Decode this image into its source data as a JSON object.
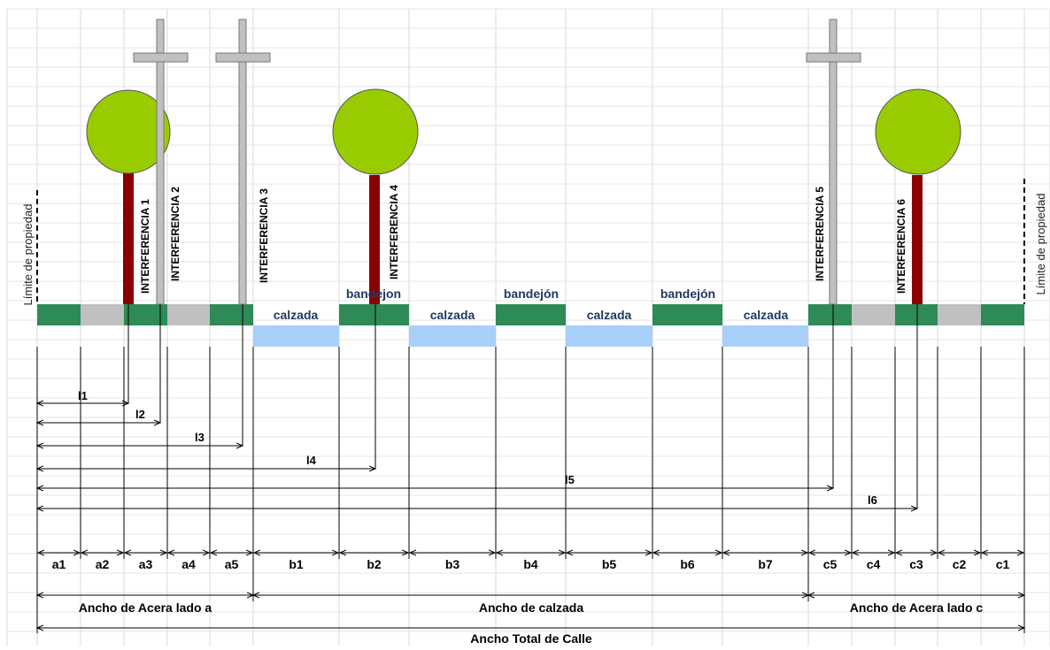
{
  "property_limit": {
    "left_label": "Límite de propiedad",
    "right_label": "Límite de propiedad"
  },
  "interferences": [
    {
      "label": "INTERFERENCIA 1",
      "source": "tree"
    },
    {
      "label": "INTERFERENCIA 2",
      "source": "pole"
    },
    {
      "label": "INTERFERENCIA 3",
      "source": "pole"
    },
    {
      "label": "INTERFERENCIA 4",
      "source": "tree"
    },
    {
      "label": "INTERFERENCIA 5",
      "source": "pole"
    },
    {
      "label": "INTERFERENCIA 6",
      "source": "tree"
    }
  ],
  "surface_labels": [
    {
      "text": "calzada"
    },
    {
      "text": "bandejon"
    },
    {
      "text": "calzada"
    },
    {
      "text": "bandejón"
    },
    {
      "text": "calzada"
    },
    {
      "text": "bandejón"
    },
    {
      "text": "calzada"
    }
  ],
  "distance_labels": [
    "l1",
    "l2",
    "l3",
    "l4",
    "l5",
    "l6"
  ],
  "segments": [
    "a1",
    "a2",
    "a3",
    "a4",
    "a5",
    "b1",
    "b2",
    "b3",
    "b4",
    "b5",
    "b6",
    "b7",
    "c5",
    "c4",
    "c3",
    "c2",
    "c1"
  ],
  "groups": {
    "sidewalk_a": "Ancho de Acera lado a",
    "roadway": "Ancho de calzada",
    "sidewalk_c": "Ancho de Acera lado c",
    "total": "Ancho Total de Calle"
  },
  "colors": {
    "sidewalk_green": "#2e8b57",
    "sidewalk_gray": "#c0c0c0",
    "roadway_blue": "#a8d0f8",
    "tree_canopy": "#99cc00",
    "tree_trunk": "#8b0000",
    "pole": "#c0c0c0",
    "label_navy": "#1f3864",
    "grid": "#d9d9d9"
  },
  "icons": [
    "tree-icon",
    "utility-pole-icon"
  ]
}
